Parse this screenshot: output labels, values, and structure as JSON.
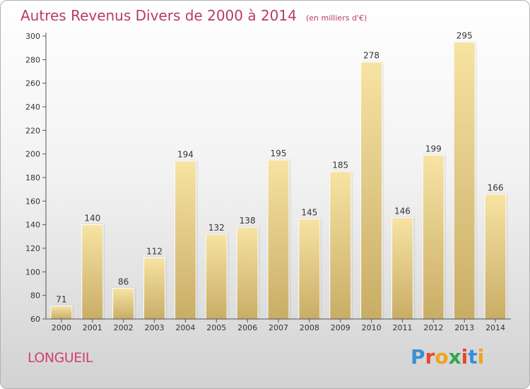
{
  "header": {
    "title": "Autres Revenus Divers de 2000 à 2014",
    "unit": "(en milliers d'€)"
  },
  "footer": {
    "commune": "LONGUEIL",
    "logo_text": "Proxiti",
    "logo_letters": [
      "P",
      "r",
      "o",
      "x",
      "i",
      "t",
      "i"
    ],
    "logo_colors": [
      "#3b8fd6",
      "#e8462a",
      "#f2a21b",
      "#2da84a",
      "#e8462a",
      "#3b8fd6",
      "#f2a21b"
    ]
  },
  "colors": {
    "title": "#b83a6b",
    "bar_light": "#f7e3a3",
    "bar_dark": "#c9ad66",
    "axis": "#555555"
  },
  "chart_data": {
    "type": "bar",
    "title": "Autres Revenus Divers de 2000 à 2014",
    "subtitle": "(en milliers d'€)",
    "xlabel": "",
    "ylabel": "",
    "categories": [
      "2000",
      "2001",
      "2002",
      "2003",
      "2004",
      "2005",
      "2006",
      "2007",
      "2008",
      "2009",
      "2010",
      "2011",
      "2012",
      "2013",
      "2014"
    ],
    "values": [
      71,
      140,
      86,
      112,
      194,
      132,
      138,
      195,
      145,
      185,
      278,
      146,
      199,
      295,
      166
    ],
    "ylim": [
      60,
      300
    ],
    "yticks": [
      60,
      80,
      100,
      120,
      140,
      160,
      180,
      200,
      220,
      240,
      260,
      280,
      300
    ],
    "grid": false,
    "legend": "none"
  }
}
